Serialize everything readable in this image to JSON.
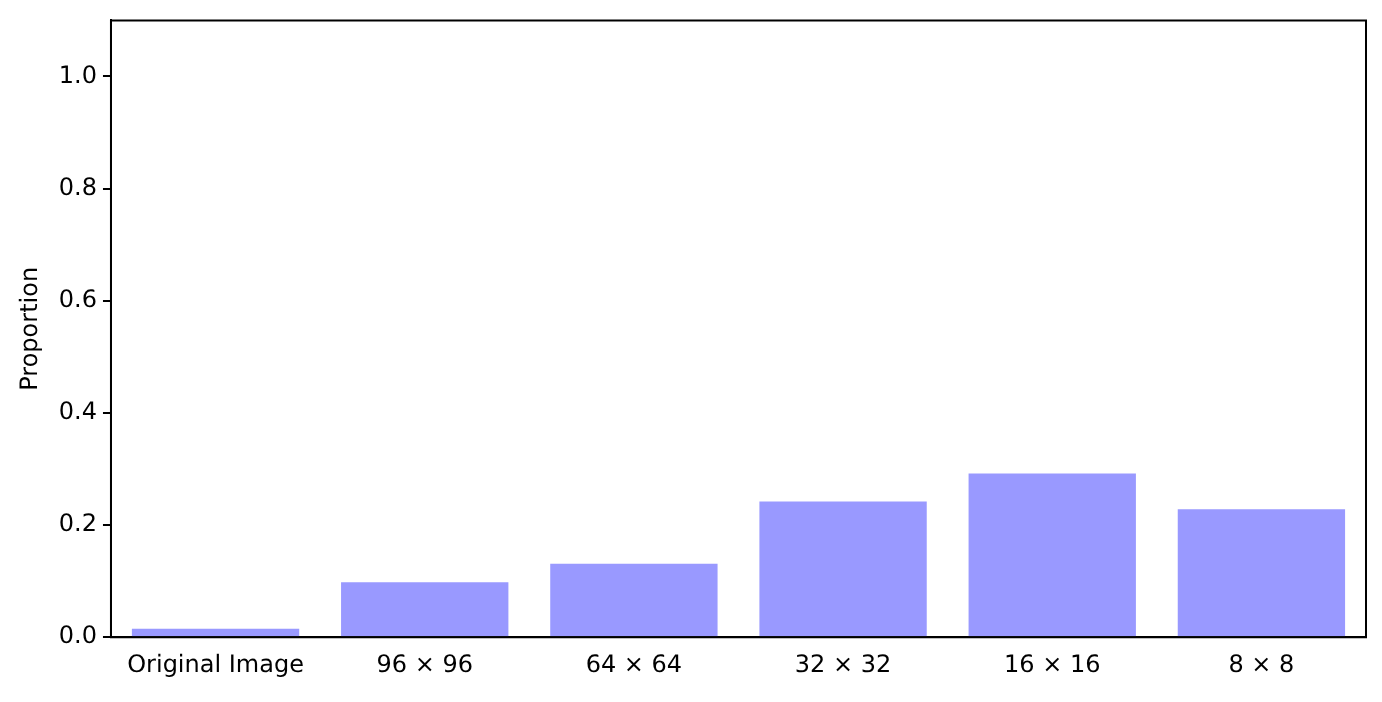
{
  "chart_data": {
    "type": "bar",
    "ylabel": "Proportion",
    "categories": [
      "Original Image",
      "96 × 96",
      "64 × 64",
      "32 × 32",
      "16 × 16",
      "8 × 8"
    ],
    "values": [
      0.015,
      0.098,
      0.131,
      0.242,
      0.292,
      0.228
    ],
    "color": "#9999ff",
    "ylim": [
      0,
      1.1
    ],
    "yticks": [
      {
        "value": 0,
        "label": "0.0"
      },
      0.2,
      0.4,
      0.6,
      0.8,
      {
        "value": 1,
        "label": "1.0"
      }
    ],
    "grid": false,
    "legend": false
  }
}
